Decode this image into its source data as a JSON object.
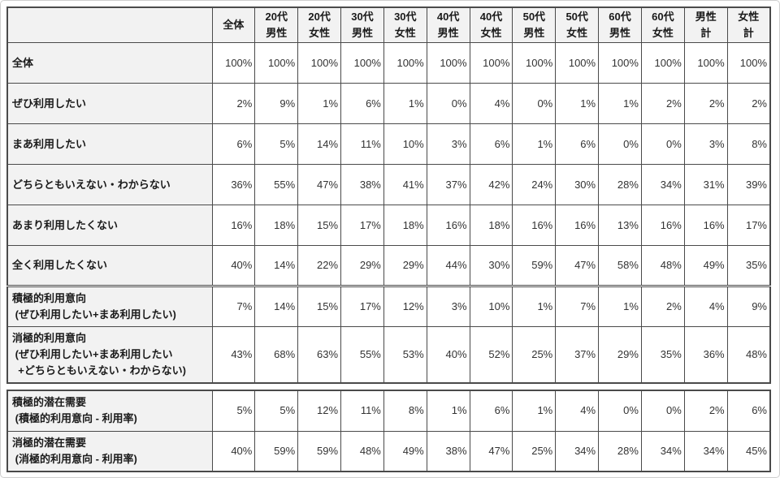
{
  "chart_data": {
    "type": "table",
    "title": "",
    "columns": [
      "",
      "全体",
      "20代\n男性",
      "20代\n女性",
      "30代\n男性",
      "30代\n女性",
      "40代\n男性",
      "40代\n女性",
      "50代\n男性",
      "50代\n女性",
      "60代\n男性",
      "60代\n女性",
      "男性\n計",
      "女性\n計"
    ],
    "row_groups": [
      {
        "name": "usage-intention-responses",
        "rows": [
          {
            "label": "全体",
            "values": [
              "100%",
              "100%",
              "100%",
              "100%",
              "100%",
              "100%",
              "100%",
              "100%",
              "100%",
              "100%",
              "100%",
              "100%",
              "100%"
            ]
          },
          {
            "label": "ぜひ利用したい",
            "values": [
              "2%",
              "9%",
              "1%",
              "6%",
              "1%",
              "0%",
              "4%",
              "0%",
              "1%",
              "1%",
              "2%",
              "2%",
              "2%"
            ]
          },
          {
            "label": "まあ利用したい",
            "values": [
              "6%",
              "5%",
              "14%",
              "11%",
              "10%",
              "3%",
              "6%",
              "1%",
              "6%",
              "0%",
              "0%",
              "3%",
              "8%"
            ]
          },
          {
            "label": "どちらともいえない・わからない",
            "values": [
              "36%",
              "55%",
              "47%",
              "38%",
              "41%",
              "37%",
              "42%",
              "24%",
              "30%",
              "28%",
              "34%",
              "31%",
              "39%"
            ]
          },
          {
            "label": "あまり利用したくない",
            "values": [
              "16%",
              "18%",
              "15%",
              "17%",
              "18%",
              "16%",
              "18%",
              "16%",
              "16%",
              "13%",
              "16%",
              "16%",
              "17%"
            ]
          },
          {
            "label": "全く利用したくない",
            "values": [
              "40%",
              "14%",
              "22%",
              "29%",
              "29%",
              "44%",
              "30%",
              "59%",
              "47%",
              "58%",
              "48%",
              "49%",
              "35%"
            ]
          }
        ]
      },
      {
        "name": "intention-aggregates",
        "separator": "thick",
        "rows": [
          {
            "label": "積極的利用意向\n (ぜひ利用したい+まあ利用したい)",
            "values": [
              "7%",
              "14%",
              "15%",
              "17%",
              "12%",
              "3%",
              "10%",
              "1%",
              "7%",
              "1%",
              "2%",
              "4%",
              "9%"
            ]
          },
          {
            "label": "消極的利用意向\n (ぜひ利用したい+まあ利用したい\n  +どちらともいえない・わからない)",
            "values": [
              "43%",
              "68%",
              "63%",
              "55%",
              "53%",
              "40%",
              "52%",
              "25%",
              "37%",
              "29%",
              "35%",
              "36%",
              "48%"
            ]
          }
        ]
      },
      {
        "name": "latent-demand",
        "separator": "detached",
        "rows": [
          {
            "label": "積極的潜在需要\n (積極的利用意向 - 利用率)",
            "values": [
              "5%",
              "5%",
              "12%",
              "11%",
              "8%",
              "1%",
              "6%",
              "1%",
              "4%",
              "0%",
              "0%",
              "2%",
              "6%"
            ]
          },
          {
            "label": "消極的潜在需要\n (消極的利用意向 - 利用率)",
            "values": [
              "40%",
              "59%",
              "59%",
              "48%",
              "49%",
              "38%",
              "47%",
              "25%",
              "34%",
              "28%",
              "34%",
              "34%",
              "45%"
            ]
          }
        ]
      }
    ]
  },
  "colors": {
    "table_border": "#4a4a4a",
    "header_bg": "#f2f2f2",
    "label_bg": "#f2f2f2",
    "cell_bg": "#ffffff",
    "text": "#333333",
    "frame_border": "#cfcfcf"
  }
}
